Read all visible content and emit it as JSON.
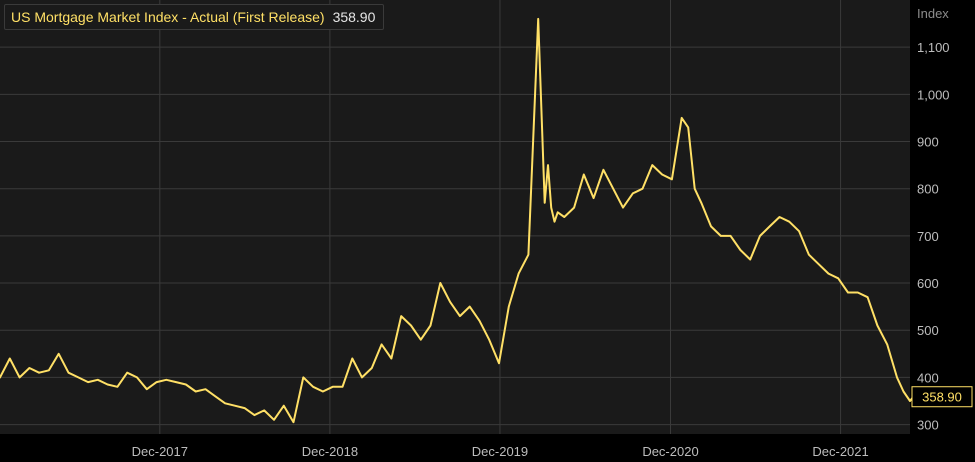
{
  "colors": {
    "background": "#000000",
    "plot_background": "#1a1a1a",
    "grid": "#3a3a3a",
    "series_line": "#ffe066",
    "tick_label": "#bdbdbd",
    "unit_label": "#8c8c8c",
    "value_badge": "#ffe066"
  },
  "legend": {
    "name": "US Mortgage Market Index - Actual (First Release)",
    "value": "358.90"
  },
  "chart_data": {
    "type": "line",
    "title": "US Mortgage Market Index - Actual (First Release)",
    "ylabel": "Index",
    "xlabel": "",
    "ylim": [
      280,
      1200
    ],
    "yticks": [
      300,
      400,
      500,
      600,
      700,
      800,
      900,
      1000,
      1100
    ],
    "ytick_labels": [
      "300",
      "400",
      "500",
      "600",
      "700",
      "800",
      "900",
      "1,000",
      "1,100"
    ],
    "x_range": [
      "2016-12-23",
      "2022-04-29"
    ],
    "xticks": [
      "2017-12-01",
      "2018-12-01",
      "2019-12-01",
      "2020-12-01",
      "2021-12-01"
    ],
    "xtick_labels": [
      "Dec-2017",
      "Dec-2018",
      "Dec-2019",
      "Dec-2020",
      "Dec-2021"
    ],
    "last_value_label": "358.90",
    "grid": true,
    "legend_position": "top-left",
    "series": [
      {
        "name": "US Mortgage Market Index - Actual (First Release)",
        "x": [
          "2016-12-23",
          "2017-01-13",
          "2017-02-03",
          "2017-02-24",
          "2017-03-17",
          "2017-04-07",
          "2017-04-28",
          "2017-05-19",
          "2017-06-09",
          "2017-06-30",
          "2017-07-21",
          "2017-08-11",
          "2017-09-01",
          "2017-09-22",
          "2017-10-13",
          "2017-11-03",
          "2017-11-24",
          "2017-12-15",
          "2018-01-05",
          "2018-01-26",
          "2018-02-16",
          "2018-03-09",
          "2018-03-30",
          "2018-04-20",
          "2018-05-11",
          "2018-06-01",
          "2018-06-22",
          "2018-07-13",
          "2018-08-03",
          "2018-08-24",
          "2018-09-14",
          "2018-10-05",
          "2018-10-26",
          "2018-11-16",
          "2018-12-07",
          "2018-12-28",
          "2019-01-18",
          "2019-02-08",
          "2019-03-01",
          "2019-03-22",
          "2019-04-12",
          "2019-05-03",
          "2019-05-24",
          "2019-06-14",
          "2019-07-05",
          "2019-07-26",
          "2019-08-16",
          "2019-09-06",
          "2019-09-27",
          "2019-10-18",
          "2019-11-08",
          "2019-11-29",
          "2019-12-20",
          "2020-01-10",
          "2020-01-31",
          "2020-02-21",
          "2020-03-06",
          "2020-03-13",
          "2020-03-20",
          "2020-03-27",
          "2020-04-03",
          "2020-04-17",
          "2020-05-08",
          "2020-05-29",
          "2020-06-19",
          "2020-07-10",
          "2020-07-31",
          "2020-08-21",
          "2020-09-11",
          "2020-10-02",
          "2020-10-23",
          "2020-11-13",
          "2020-12-04",
          "2020-12-25",
          "2021-01-08",
          "2021-01-22",
          "2021-02-05",
          "2021-02-26",
          "2021-03-19",
          "2021-04-09",
          "2021-04-30",
          "2021-05-21",
          "2021-06-11",
          "2021-07-02",
          "2021-07-23",
          "2021-08-13",
          "2021-09-03",
          "2021-09-24",
          "2021-10-15",
          "2021-11-05",
          "2021-11-26",
          "2021-12-17",
          "2022-01-07",
          "2022-01-28",
          "2022-02-18",
          "2022-03-11",
          "2022-04-01",
          "2022-04-15",
          "2022-04-29",
          "2022-05-06"
        ],
        "y": [
          400,
          440,
          400,
          420,
          410,
          415,
          450,
          410,
          400,
          390,
          395,
          385,
          380,
          410,
          400,
          375,
          390,
          395,
          390,
          385,
          370,
          375,
          360,
          345,
          340,
          335,
          320,
          330,
          310,
          340,
          305,
          400,
          380,
          370,
          380,
          380,
          440,
          400,
          420,
          470,
          440,
          530,
          510,
          480,
          510,
          600,
          560,
          530,
          550,
          520,
          480,
          430,
          550,
          620,
          660,
          1160,
          770,
          850,
          760,
          730,
          750,
          740,
          760,
          830,
          780,
          840,
          800,
          760,
          790,
          800,
          850,
          830,
          820,
          950,
          930,
          800,
          770,
          720,
          700,
          700,
          670,
          650,
          700,
          720,
          740,
          730,
          710,
          660,
          640,
          620,
          610,
          580,
          580,
          570,
          510,
          470,
          400,
          370,
          350,
          359
        ]
      }
    ]
  }
}
